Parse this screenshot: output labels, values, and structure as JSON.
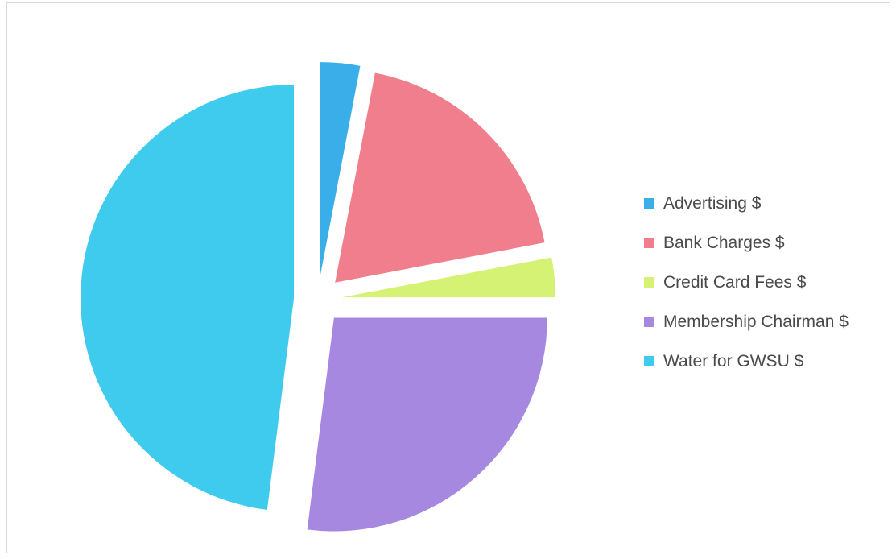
{
  "chart_data": {
    "type": "pie",
    "exploded": true,
    "legend_position": "right",
    "categories": [
      "Advertising $",
      "Bank Charges $",
      "Credit Card Fees $",
      "Membership Chairman $",
      "Water for GWSU $"
    ],
    "values": [
      3,
      19,
      3,
      27,
      48
    ],
    "colors": [
      "#3aaee8",
      "#f07e8c",
      "#d5f274",
      "#a788e0",
      "#3fcbed"
    ]
  }
}
